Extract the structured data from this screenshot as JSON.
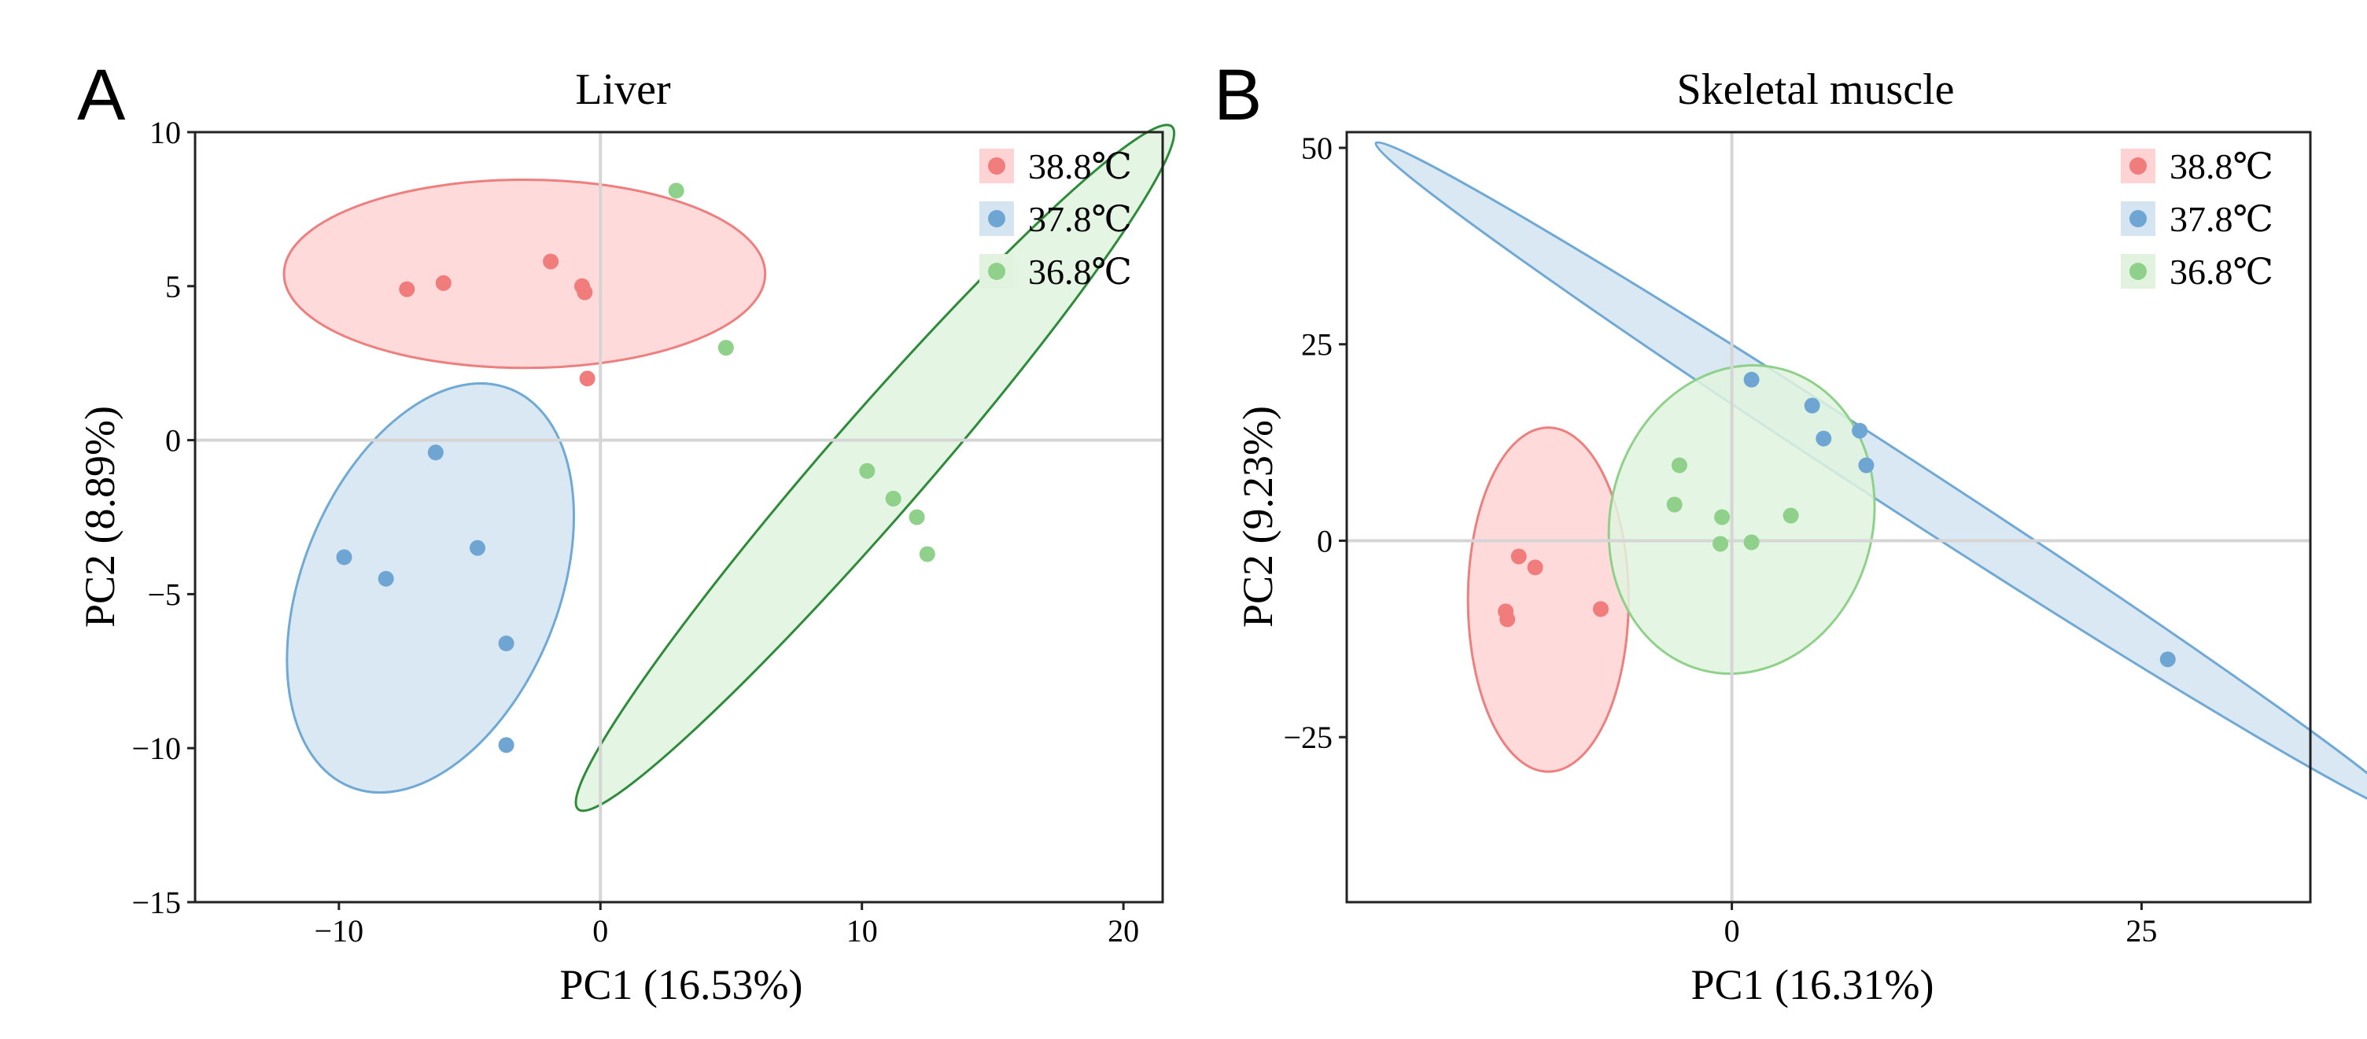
{
  "chart_data": [
    {
      "panel_letter": "A",
      "type": "scatter",
      "title": "Liver",
      "xlabel": "PC1 (16.53%)",
      "ylabel": "PC2 (8.89%)",
      "xlim": [
        -15.5,
        21.5
      ],
      "ylim": [
        -15,
        10
      ],
      "xticks": [
        -10,
        0,
        10,
        20
      ],
      "yticks": [
        -15,
        -10,
        -5,
        0,
        5,
        10
      ],
      "xtick_labels": [
        "−10",
        "0",
        "10",
        "20"
      ],
      "ytick_labels": [
        "−15",
        "−10",
        "−5",
        "0",
        "5",
        "10"
      ],
      "grid": false,
      "zero_lines": true,
      "legend_position": "top-right",
      "series": [
        {
          "name": "38.8℃",
          "color": "#f07c7c",
          "fill": "#ffd3d3",
          "stroke": "#ee7f7f",
          "x": [
            -7.4,
            -6.0,
            -1.9,
            -0.7,
            -0.6,
            -0.5
          ],
          "y": [
            4.9,
            5.1,
            5.8,
            5.0,
            4.8,
            2.0
          ],
          "ellipse": {
            "cx": -2.9,
            "cy": 5.4,
            "rx": 9.2,
            "ry": 3.6,
            "angle": 0
          }
        },
        {
          "name": "37.8℃",
          "color": "#6fa5d2",
          "fill": "#d4e4f1",
          "stroke": "#6fa9d4",
          "x": [
            -9.8,
            -8.2,
            -6.3,
            -4.7,
            -3.6,
            -3.6
          ],
          "y": [
            -3.8,
            -4.5,
            -0.4,
            -3.5,
            -6.6,
            -9.9
          ],
          "ellipse": {
            "cx": -6.5,
            "cy": -4.8,
            "rx": 8.2,
            "ry": 4.9,
            "angle": 68
          }
        },
        {
          "name": "36.8℃",
          "color": "#8fd18a",
          "fill": "#e1f3de",
          "stroke": "#2e8b3a",
          "x": [
            2.9,
            4.8,
            10.2,
            11.2,
            12.1,
            12.5
          ],
          "y": [
            8.1,
            3.0,
            -1.0,
            -1.9,
            -2.5,
            -3.7
          ],
          "ellipse": {
            "cx": 10.5,
            "cy": -0.9,
            "rx": 17.3,
            "ry": 1.9,
            "angle": 49
          }
        }
      ]
    },
    {
      "panel_letter": "B",
      "type": "scatter",
      "title": "Skeletal muscle",
      "xlabel": "PC1 (16.31%)",
      "ylabel": "PC2 (9.23%)",
      "xlim": [
        -23.5,
        35.3
      ],
      "ylim": [
        -46,
        52
      ],
      "xticks": [
        0,
        25
      ],
      "yticks": [
        -25,
        0,
        25,
        50
      ],
      "xtick_labels": [
        "0",
        "25"
      ],
      "ytick_labels": [
        "−25",
        "0",
        "25",
        "50"
      ],
      "grid": false,
      "zero_lines": true,
      "legend_position": "top-right",
      "series": [
        {
          "name": "38.8℃",
          "color": "#f07c7c",
          "fill": "#ffd3d3",
          "stroke": "#ee7f7f",
          "x": [
            -13.0,
            -12.0,
            -13.8,
            -13.7,
            -8.0
          ],
          "y": [
            -2.0,
            -3.4,
            -9.0,
            -10.0,
            -8.7
          ],
          "ellipse": {
            "cx": -11.2,
            "cy": -7.5,
            "rx": 4.9,
            "ry": 10.5,
            "angle": 0
          }
        },
        {
          "name": "37.8℃",
          "color": "#6fa5d2",
          "fill": "#d4e4f1",
          "stroke": "#6fa9d4",
          "x": [
            1.2,
            4.9,
            5.6,
            7.8,
            8.2,
            26.6
          ],
          "y": [
            20.5,
            17.2,
            13.0,
            14.0,
            9.6,
            -15.1
          ],
          "ellipse": {
            "cx": 9.9,
            "cy": 7.8,
            "rx": 37.7,
            "ry": 1.6,
            "angle": -33
          }
        },
        {
          "name": "36.8℃",
          "color": "#8fd18a",
          "fill": "#e1f3de",
          "stroke": "#8fd18a",
          "x": [
            -3.2,
            -3.5,
            -0.6,
            1.2,
            3.6,
            -0.7
          ],
          "y": [
            9.6,
            4.6,
            3.0,
            -0.2,
            3.2,
            -0.4
          ],
          "ellipse": {
            "cx": 0.6,
            "cy": 2.7,
            "rx": 8.0,
            "ry": 9.5,
            "angle": -15
          }
        }
      ]
    }
  ]
}
